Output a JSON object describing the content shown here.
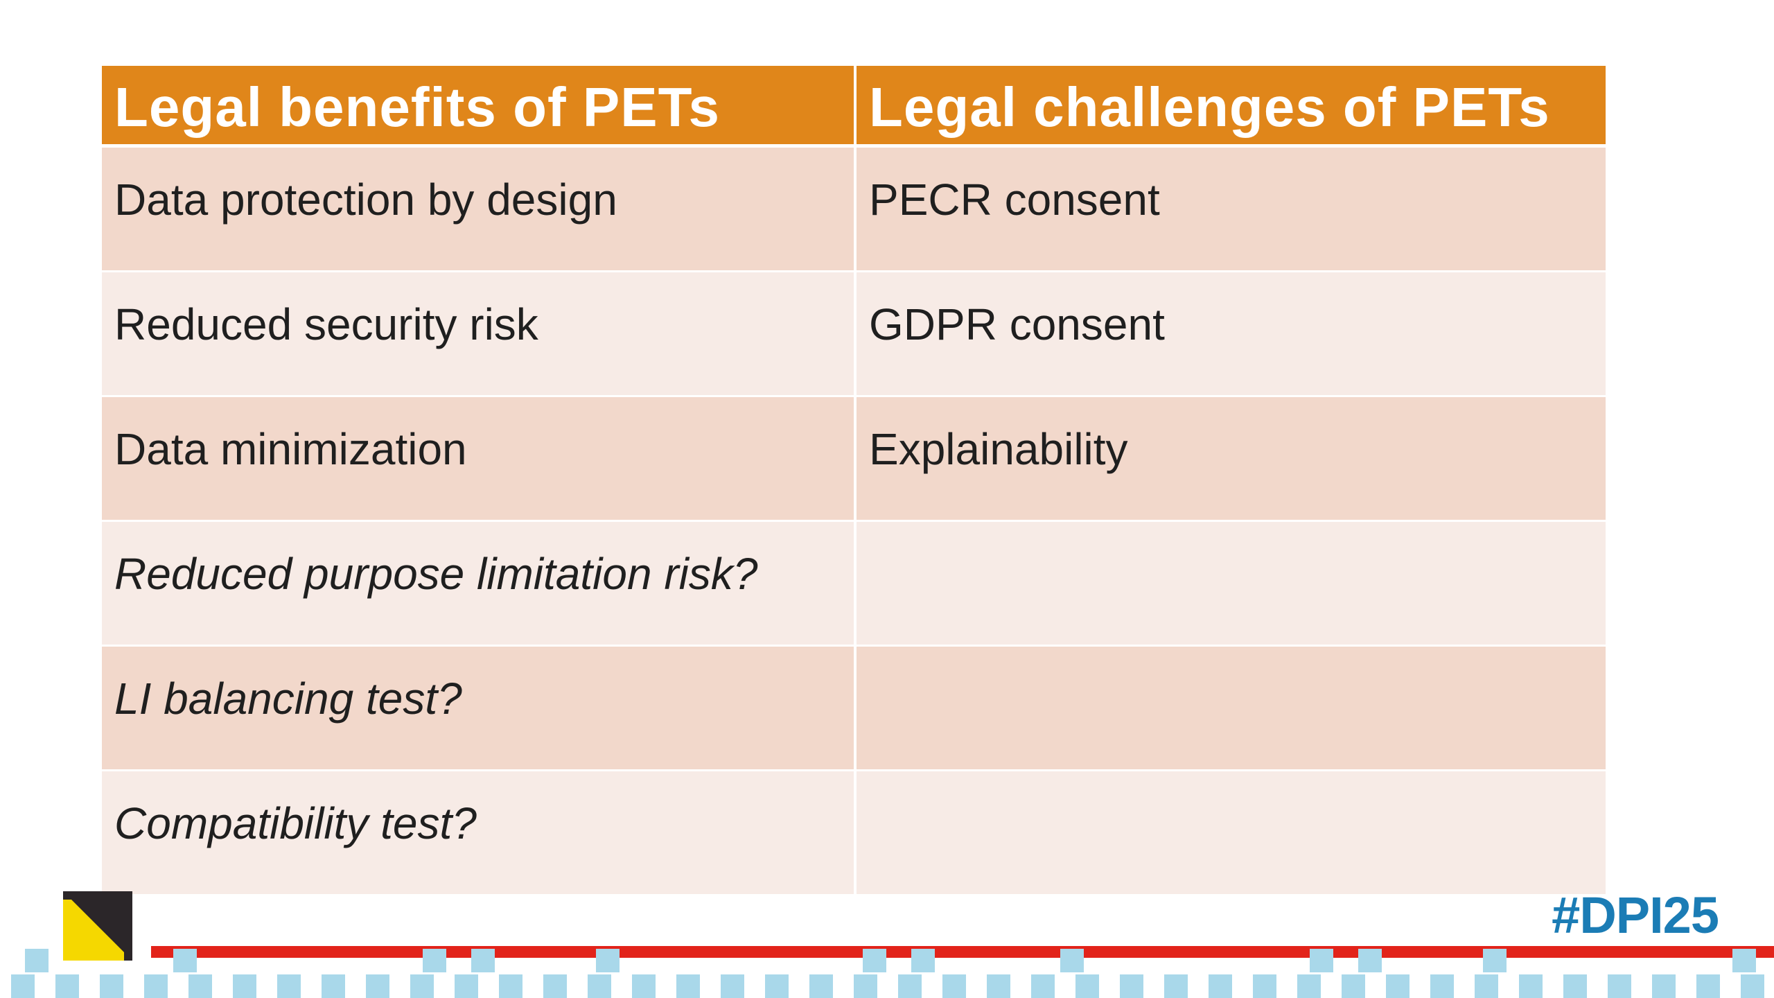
{
  "table": {
    "headers": {
      "benefits": "Legal benefits of PETs",
      "challenges": "Legal challenges of PETs"
    },
    "rows": [
      {
        "benefit": "Data protection by design",
        "challenge": "PECR consent"
      },
      {
        "benefit": "Reduced security risk",
        "challenge": "GDPR consent"
      },
      {
        "benefit": "Data minimization",
        "challenge": "Explainability"
      },
      {
        "benefit": "Reduced purpose limitation risk?",
        "challenge": ""
      },
      {
        "benefit": "LI balancing test?",
        "challenge": ""
      },
      {
        "benefit": "Compatibility test?",
        "challenge": ""
      }
    ]
  },
  "footer": {
    "hashtag": "#DPI25",
    "logo_icon": "triangle-square-logo-icon",
    "colors": {
      "header_orange": "#e0861a",
      "row_dark": "#f2d8cb",
      "row_light": "#f7ebe6",
      "hashtag_blue": "#1b7cb5",
      "line_red": "#e2231a",
      "pixel_blue": "#a9d8ea",
      "logo_yellow": "#f5d800",
      "logo_dark": "#2b2629"
    }
  }
}
